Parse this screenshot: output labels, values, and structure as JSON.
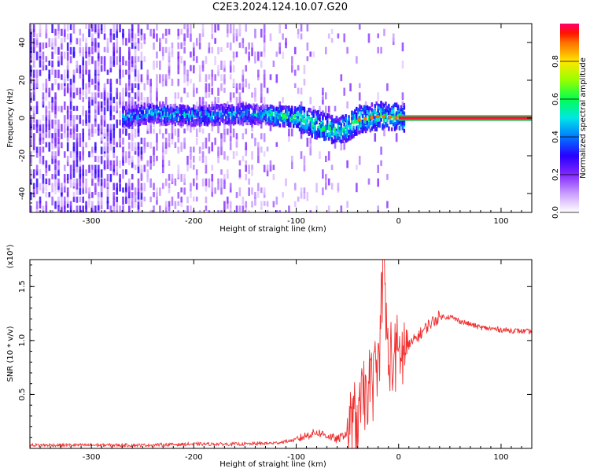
{
  "page_title": "C2E3.2024.124.10.07.G20",
  "colors": {
    "snr_line": "#f03030",
    "spectrogram_low": "#8a2be2",
    "colormap": [
      "#ffffff",
      "#cc99ff",
      "#6600ff",
      "#0000ff",
      "#00ccff",
      "#00ff66",
      "#33ff00",
      "#ffff00",
      "#ff8800",
      "#ff0000",
      "#ff0066"
    ]
  },
  "chart_data": [
    {
      "type": "heatmap",
      "title": "C2E3.2024.124.10.07.G20",
      "xlabel": "Height of straight line (km)",
      "ylabel": "Frequency (Hz)",
      "xlim": [
        -360,
        130
      ],
      "ylim": [
        -50,
        50
      ],
      "x_ticks": [
        -300,
        -200,
        -100,
        0,
        100
      ],
      "y_ticks": [
        -40,
        -20,
        0,
        20,
        40
      ],
      "colorbar": {
        "label": "Normalized spectral amplitude",
        "range": [
          0.0,
          1.0
        ],
        "ticks": [
          "0.0",
          "0.2",
          "0.4",
          "0.6",
          "0.8"
        ]
      },
      "ridge": {
        "description_points_x": [
          -270,
          -250,
          -200,
          -150,
          -120,
          -100,
          -80,
          -60,
          -50,
          -40,
          -30,
          -20,
          0,
          130
        ],
        "description_points_y": [
          0,
          2,
          1,
          2,
          1,
          0,
          -4,
          -7,
          -5,
          -1,
          0,
          1,
          0,
          0
        ]
      }
    },
    {
      "type": "line",
      "xlabel": "Height of straight line (km)",
      "ylabel": "SNR (10 * v/v)",
      "y_multiplier_label": "(x10⁴)",
      "xlim": [
        -360,
        130
      ],
      "ylim": [
        0,
        1.75
      ],
      "x_ticks": [
        -300,
        -200,
        -100,
        0,
        100
      ],
      "y_ticks": [
        "0.5",
        "1.0",
        "1.5"
      ],
      "series": [
        {
          "x": [
            -360,
            -300,
            -250,
            -200,
            -150,
            -120,
            -100,
            -90,
            -80,
            -70,
            -60,
            -50,
            -40,
            -30,
            -20,
            -15,
            -10,
            0,
            10,
            20,
            30,
            40,
            50,
            60,
            70,
            80,
            100,
            130
          ],
          "values": [
            0.03,
            0.03,
            0.03,
            0.04,
            0.04,
            0.05,
            0.08,
            0.12,
            0.15,
            0.12,
            0.08,
            0.15,
            0.3,
            0.55,
            0.75,
            1.75,
            0.8,
            0.85,
            0.95,
            1.05,
            1.15,
            1.22,
            1.22,
            1.18,
            1.15,
            1.12,
            1.1,
            1.08
          ]
        }
      ]
    }
  ]
}
